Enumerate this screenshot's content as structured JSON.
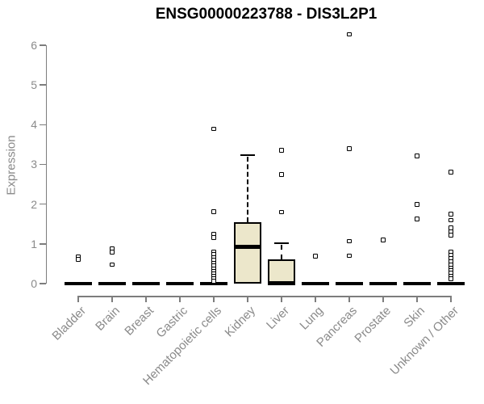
{
  "colors": {
    "box_fill": "#ece7cb",
    "box_stroke": "#000000",
    "axis_line": "#7d7d7d",
    "axis_text": "#8a8a8a",
    "title_text": "#000000",
    "background": "#ffffff"
  },
  "chart_data": {
    "type": "boxplot",
    "title": "ENSG00000223788 - DIS3L2P1",
    "xlabel": "",
    "ylabel": "Expression",
    "ylim": [
      -0.35,
      6.45
    ],
    "yticks": [
      "0",
      "1",
      "2",
      "3",
      "4",
      "5",
      "6"
    ],
    "grid": false,
    "legend": "none",
    "categories": [
      "Bladder",
      "Brain",
      "Breast",
      "Gastric",
      "Hematopoietic cells",
      "Kidney",
      "Liver",
      "Lung",
      "Pancreas",
      "Prostate",
      "Skin",
      "Unknown / Other"
    ],
    "boxes": [
      {
        "category": "Bladder",
        "q1": 0,
        "median": 0,
        "q3": 0,
        "whisker_low": 0,
        "whisker_high": 0,
        "outliers": [
          0.67,
          0.61
        ]
      },
      {
        "category": "Brain",
        "q1": 0,
        "median": 0,
        "q3": 0,
        "whisker_low": 0,
        "whisker_high": 0,
        "outliers": [
          0.88,
          0.79,
          0.48
        ]
      },
      {
        "category": "Breast",
        "q1": 0,
        "median": 0,
        "q3": 0,
        "whisker_low": 0,
        "whisker_high": 0,
        "outliers": []
      },
      {
        "category": "Gastric",
        "q1": 0,
        "median": 0,
        "q3": 0,
        "whisker_low": 0,
        "whisker_high": 0,
        "outliers": []
      },
      {
        "category": "Hematopoietic cells",
        "q1": 0,
        "median": 0,
        "q3": 0,
        "whisker_low": 0,
        "whisker_high": 0,
        "outliers": [
          3.89,
          1.81,
          1.25,
          1.16,
          0.79,
          0.73,
          0.66,
          0.59,
          0.52,
          0.45,
          0.38,
          0.32,
          0.25,
          0.18,
          0.12,
          0.06
        ]
      },
      {
        "category": "Kidney",
        "q1": 0,
        "median": 0.92,
        "q3": 1.54,
        "whisker_low": 0,
        "whisker_high": 3.23,
        "outliers": []
      },
      {
        "category": "Liver",
        "q1": 0,
        "median": 0.02,
        "q3": 0.6,
        "whisker_low": 0,
        "whisker_high": 1.02,
        "outliers": [
          3.36,
          2.75,
          1.8
        ]
      },
      {
        "category": "Lung",
        "q1": 0,
        "median": 0,
        "q3": 0,
        "whisker_low": 0,
        "whisker_high": 0,
        "outliers": [
          0.69
        ]
      },
      {
        "category": "Pancreas",
        "q1": 0,
        "median": 0,
        "q3": 0,
        "whisker_low": 0,
        "whisker_high": 0,
        "outliers": [
          6.27,
          3.4,
          1.07,
          0.7
        ]
      },
      {
        "category": "Prostate",
        "q1": 0,
        "median": 0,
        "q3": 0,
        "whisker_low": 0,
        "whisker_high": 0,
        "outliers": [
          1.1
        ]
      },
      {
        "category": "Skin",
        "q1": 0,
        "median": 0,
        "q3": 0,
        "whisker_low": 0,
        "whisker_high": 0,
        "outliers": [
          3.21,
          1.99,
          1.63
        ]
      },
      {
        "category": "Unknown / Other",
        "q1": 0,
        "median": 0,
        "q3": 0,
        "whisker_low": 0,
        "whisker_high": 0,
        "outliers": [
          2.81,
          1.75,
          1.6,
          1.4,
          1.31,
          1.22,
          0.79,
          0.71,
          0.63,
          0.55,
          0.47,
          0.4,
          0.33,
          0.26,
          0.19,
          0.12
        ]
      }
    ]
  }
}
